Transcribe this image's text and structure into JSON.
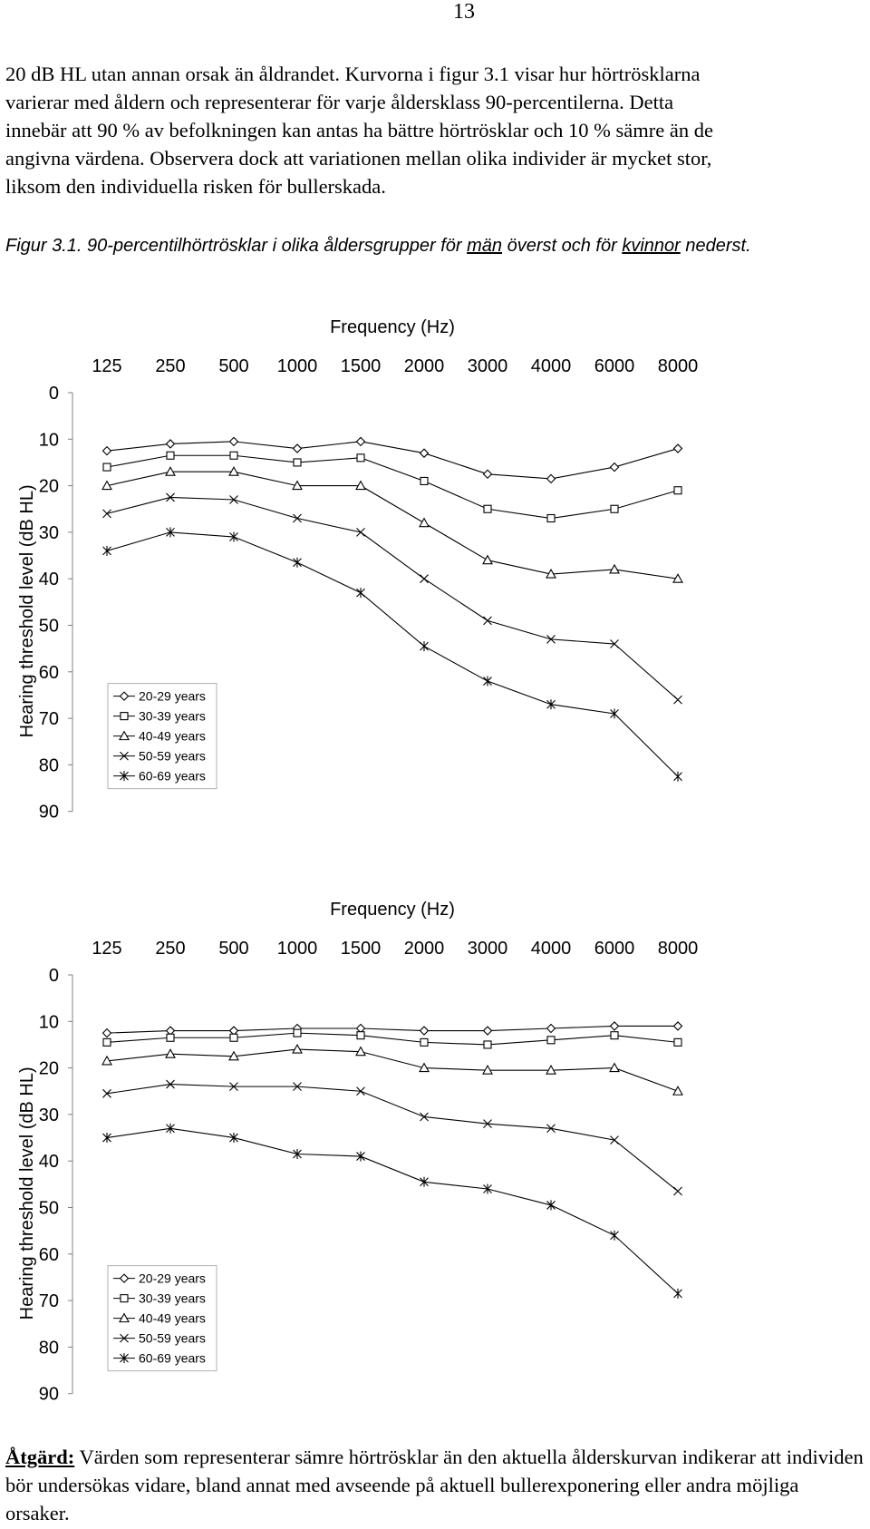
{
  "page_number": "13",
  "intro_text": "20 dB HL utan annan orsak än åldrandet. Kurvorna i figur 3.1 visar hur hörtrösklarna\nvarierar med åldern och representerar för varje åldersklass 90-percentilerna. Detta\ninnebär att 90 % av befolkningen kan antas ha bättre hörtrösklar och 10 % sämre än de\nangivna värdena. Observera dock att variationen mellan olika individer är mycket stor,\nliksom den individuella risken för bullerskada.",
  "caption": {
    "prefix": "Figur 3.1. 90-percentilhörtrösklar i olika åldersgrupper för ",
    "men": "män",
    "middle": " överst och för ",
    "women": "kvinnor",
    "suffix": " nederst."
  },
  "action": {
    "label": "Åtgärd:",
    "text": " Värden som representerar sämre hörtrösklar än den aktuella ålderskurvan indikerar att individen bör undersökas vidare, bland annat med avseende på aktuell bullerexponering eller andra möjliga orsaker."
  },
  "chart_data": [
    {
      "type": "line",
      "title": "",
      "xlabel": "Frequency (Hz)",
      "ylabel": "Hearing threshold level (dB HL)",
      "categories": [
        "125",
        "250",
        "500",
        "1000",
        "1500",
        "2000",
        "3000",
        "4000",
        "6000",
        "8000"
      ],
      "ylim": [
        0,
        90
      ],
      "y_ticks": [
        0,
        10,
        20,
        30,
        40,
        50,
        60,
        70,
        80,
        90
      ],
      "y_inverted": true,
      "x_axis_position": "top",
      "grid": false,
      "legend_position": "bottom-left",
      "series": [
        {
          "name": "20-29 years",
          "marker": "diamond",
          "values": [
            12.5,
            11,
            10.5,
            12,
            10.5,
            13,
            17.5,
            18.5,
            16,
            12
          ]
        },
        {
          "name": "30-39 years",
          "marker": "square",
          "values": [
            16,
            13.5,
            13.5,
            15,
            14,
            19,
            25,
            27,
            25,
            21
          ]
        },
        {
          "name": "40-49 years",
          "marker": "triangle",
          "values": [
            20,
            17,
            17,
            20,
            20,
            28,
            36,
            39,
            38,
            40
          ]
        },
        {
          "name": "50-59 years",
          "marker": "x",
          "values": [
            26,
            22.5,
            23,
            27,
            30,
            40,
            49,
            53,
            54,
            66
          ]
        },
        {
          "name": "60-69 years",
          "marker": "star",
          "values": [
            34,
            30,
            31,
            36.5,
            43,
            54.5,
            62,
            67,
            69,
            82.5
          ]
        }
      ]
    },
    {
      "type": "line",
      "title": "",
      "xlabel": "Frequency (Hz)",
      "ylabel": "Hearing threshold level (dB HL)",
      "categories": [
        "125",
        "250",
        "500",
        "1000",
        "1500",
        "2000",
        "3000",
        "4000",
        "6000",
        "8000"
      ],
      "ylim": [
        0,
        90
      ],
      "y_ticks": [
        0,
        10,
        20,
        30,
        40,
        50,
        60,
        70,
        80,
        90
      ],
      "y_inverted": true,
      "x_axis_position": "top",
      "grid": false,
      "legend_position": "bottom-left",
      "series": [
        {
          "name": "20-29 years",
          "marker": "diamond",
          "values": [
            12.5,
            12,
            12,
            11.5,
            11.5,
            12,
            12,
            11.5,
            11,
            11
          ]
        },
        {
          "name": "30-39 years",
          "marker": "square",
          "values": [
            14.5,
            13.5,
            13.5,
            12.5,
            13,
            14.5,
            15,
            14,
            13,
            14.5
          ]
        },
        {
          "name": "40-49 years",
          "marker": "triangle",
          "values": [
            18.5,
            17,
            17.5,
            16,
            16.5,
            20,
            20.5,
            20.5,
            20,
            25
          ]
        },
        {
          "name": "50-59 years",
          "marker": "x",
          "values": [
            25.5,
            23.5,
            24,
            24,
            25,
            30.5,
            32,
            33,
            35.5,
            46.5
          ]
        },
        {
          "name": "60-69 years",
          "marker": "star",
          "values": [
            35,
            33,
            35,
            38.5,
            39,
            44.5,
            46,
            49.5,
            56,
            68.5
          ]
        }
      ]
    }
  ]
}
